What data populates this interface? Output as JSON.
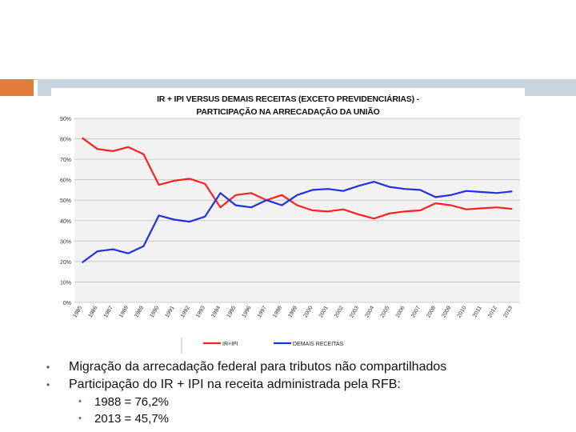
{
  "slide": {
    "bullets": [
      "Migração da arrecadação federal para tributos não compartilhados",
      "Participação do IR + IPI na receita administrada pela RFB:"
    ],
    "sub_bullets": [
      "1988 = 76,2%",
      "2013 = 45,7%"
    ]
  },
  "chart_data": {
    "type": "line",
    "title": "IR + IPI VERSUS DEMAIS RECEITAS (EXCETO PREVIDENCIÁRIAS) - PARTICIPAÇÃO NA ARRECADAÇÃO DA UNIÃO",
    "title_lines": [
      "IR + IPI VERSUS DEMAIS RECEITAS (EXCETO PREVIDENCIÁRIAS) -",
      "PARTICIPAÇÃO NA ARRECADAÇÃO DA UNIÃO"
    ],
    "x": [
      "1985",
      "1986",
      "1987",
      "1988",
      "1989",
      "1990",
      "1991",
      "1992",
      "1993",
      "1994",
      "1995",
      "1996",
      "1997",
      "1998",
      "1999",
      "2000",
      "2001",
      "2002",
      "2003",
      "2004",
      "2005",
      "2006",
      "2007",
      "2008",
      "2009",
      "2010",
      "2011",
      "2012",
      "2013"
    ],
    "y_ticks": [
      "0%",
      "10%",
      "20%",
      "30%",
      "40%",
      "50%",
      "60%",
      "70%",
      "80%",
      "90%"
    ],
    "ylim": [
      0,
      90
    ],
    "grid": true,
    "legend_position": "bottom",
    "series": [
      {
        "name": "IR+IPI",
        "color": "#ff2020",
        "values": [
          80.5,
          75,
          74,
          76,
          72.5,
          57.5,
          59.5,
          60.5,
          58,
          46.5,
          52.5,
          53.5,
          50,
          52.5,
          47.5,
          45,
          44.5,
          45.5,
          43,
          41,
          43.5,
          44.5,
          45,
          48.5,
          47.5,
          45.5,
          46,
          46.5,
          45.7
        ]
      },
      {
        "name": "DEMAIS RECEITAS",
        "color": "#2030e0",
        "values": [
          19.5,
          25,
          26,
          24,
          27.5,
          42.5,
          40.5,
          39.5,
          42,
          53.5,
          47.5,
          46.5,
          50,
          47.5,
          52.5,
          55,
          55.5,
          54.5,
          57,
          59,
          56.5,
          55.5,
          55,
          51.5,
          52.5,
          54.5,
          54,
          53.5,
          54.3
        ]
      }
    ]
  }
}
